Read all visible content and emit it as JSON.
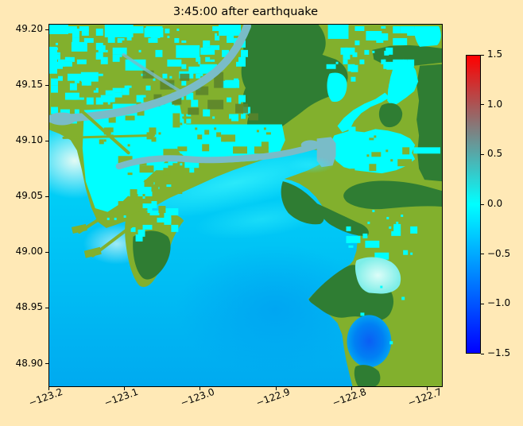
{
  "chart_data": {
    "type": "heatmap",
    "title": "3:45:00 after earthquake",
    "xlabel": "",
    "ylabel": "",
    "grid": false,
    "xlim": [
      -123.2,
      -122.68
    ],
    "ylim": [
      48.879,
      49.205
    ],
    "x_tick_values": [
      -123.2,
      -123.1,
      -123.0,
      -122.9,
      -122.8,
      -122.7
    ],
    "x_tick_labels": [
      "−123.2",
      "−123.1",
      "−123.0",
      "−122.9",
      "−122.8",
      "−122.7"
    ],
    "y_tick_values": [
      49.2,
      49.15,
      49.1,
      49.05,
      49.0,
      48.95,
      48.9
    ],
    "y_tick_labels": [
      "49.20",
      "49.15",
      "49.10",
      "49.05",
      "49.00",
      "48.95",
      "48.90"
    ],
    "value_range": [
      -1.5,
      1.5
    ],
    "colorbar": {
      "min": -1.5,
      "max": 1.5,
      "tick_values": [
        1.5,
        1.0,
        0.5,
        0.0,
        -0.5,
        -1.0,
        -1.5
      ],
      "tick_labels": [
        "1.5",
        "1.0",
        "0.5",
        "0.0",
        "−0.5",
        "−1.0",
        "−1.5"
      ],
      "gradient_stops": [
        {
          "value": -1.5,
          "color": "#0000ff"
        },
        {
          "value": -1.0,
          "color": "#0055ff"
        },
        {
          "value": -0.5,
          "color": "#00aaff"
        },
        {
          "value": 0.0,
          "color": "#00ffff"
        },
        {
          "value": 0.5,
          "color": "#55aaaa"
        },
        {
          "value": 1.0,
          "color": "#aa5555"
        },
        {
          "value": 1.5,
          "color": "#ff0000"
        }
      ]
    },
    "map_features": [
      {
        "name": "open-sea",
        "appearance": "cyan-to-blue gradient water filling the lower left (Strait of Georgia)"
      },
      {
        "name": "urban-lowland",
        "appearance": "olive-green delta lowland in upper left, densely speckled with cyan flooded patches"
      },
      {
        "name": "river-channel",
        "appearance": "grey-cyan river winding from upper middle down to the left edge, with a second grey arm running west near mid-height"
      },
      {
        "name": "upland",
        "appearance": "large dark green highland mass in the upper right and along the right side"
      },
      {
        "name": "flooded-valley",
        "appearance": "large bright cyan flooded areas in the center and center-right"
      },
      {
        "name": "peninsula",
        "appearance": "olive peninsula with dark green core extending south into the sea at lower left"
      },
      {
        "name": "jetties",
        "appearance": "thin olive causeways extending southwest into the sea with terminal blocks"
      },
      {
        "name": "pale-inlet",
        "appearance": "very pale cyan shallow inlet on the lower right shore"
      },
      {
        "name": "deep-bay",
        "appearance": "small round deep-blue bay near the bottom right, enclosed by land"
      }
    ]
  },
  "colors": {
    "figure_bg": "#ffe9b6",
    "spine": "#000000",
    "text": "#000000",
    "land_low": "#82b02d",
    "land_high": "#2f7d33",
    "flood_cyan": "#00ffff",
    "river": "#79bcc8",
    "urban": "#5a832c",
    "sea_pale": "#a8eef0",
    "sea_bright": "#00dcf8",
    "sea_mid": "#00c8f6",
    "sea_deep": "#00aaf0",
    "bank_pale": "#e2faf5",
    "delta_bright": "#2fecfb",
    "bay_mid": "#00a0f2",
    "bay_deep_center": "#0b5ef4",
    "bay_deep_mid": "#0080f4",
    "bay_deep_edge": "#00a2f2",
    "inlet_pale": "#7deee8",
    "inlet_glint": "#dcfdf8"
  }
}
